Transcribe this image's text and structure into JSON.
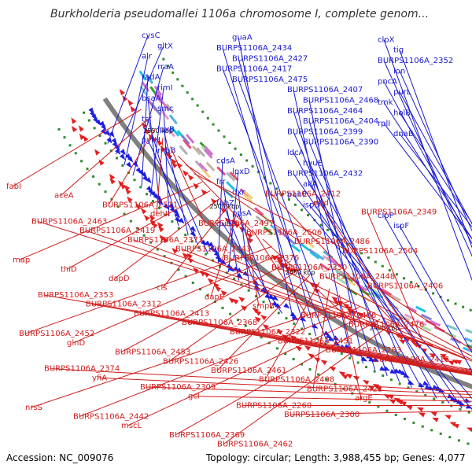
{
  "title": "Burkholderia pseudomallei 1106a chromosome I, complete genom...",
  "footer": {
    "accession": "Accession: NC_009076",
    "summary": "Topology: circular; Length: 3,988,455 bp; Genes: 4,077"
  },
  "colors": {
    "forward": "#1f1fe6",
    "reverse": "#e61f1f",
    "backbone": "#808080",
    "tick_mark": "#2e8b2e",
    "feature_palette": [
      "#c8b4a0",
      "#78c8c8",
      "#e6a0c8",
      "#a0e0a0",
      "#8080d0",
      "#f0d080",
      "#b0b0b0",
      "#50b0e0",
      "#d070d0",
      "#30a030",
      "#e05080",
      "#20c0e0"
    ]
  },
  "kbp_ticks": [
    "2550 kbp",
    "2500 kbp",
    "2450 kbp",
    "2400 kbp",
    "2350 kbp",
    "2300 kbp",
    "2250 kbp"
  ],
  "forward_labels": [
    "cysC",
    "gltX",
    "alr",
    "rraA",
    "radA",
    "rimI",
    "bsaA",
    "smc",
    "tsf",
    "lpxB",
    "pyrH",
    "rnhB",
    "cdsA",
    "lpxD",
    "frr",
    "dxr",
    "fabZ",
    "ppsA",
    "guaB",
    "guaA",
    "BURPS1106A_2434",
    "BURPS1106A_2427",
    "BURPS1106A_2417",
    "BURPS1106A_2475",
    "BURPS1106A_2407",
    "BURPS1106A_2468",
    "BURPS1106A_2464",
    "BURPS1106A_2404",
    "BURPS1106A_2399",
    "BURPS1106A_2390",
    "ldcA",
    "hyuE",
    "BURPS1106A_2432",
    "allA",
    "panE",
    "ispD",
    "clpP",
    "ispF",
    "clpX",
    "tig",
    "BURPS1106A_2352",
    "lon",
    "pncA",
    "purL",
    "tmk",
    "holB",
    "rplI",
    "dnaB"
  ],
  "reverse_labels": [
    "fabI",
    "aceA",
    "BURPS1106A_2511",
    "dehII",
    "BURPS1106A_2497",
    "BURPS1106A_2506",
    "BURPS1106A_2486",
    "BURPS1106A_2504",
    "map",
    "thiD",
    "dapD",
    "cls",
    "dapE",
    "smpB",
    "BURPS1106A_2466",
    "BURPS1106A_2476",
    "BURPS1106A_2452",
    "glnD",
    "BURPS1106A_2453",
    "BURPS1106A_2426",
    "BURPS1106A_2461",
    "BURPS1106A_2408",
    "BURPS1106A_2421",
    "argE",
    "nrsS",
    "BURPS1106A_2442",
    "mscL",
    "BURPS1106A_2369",
    "BURPS1106A_2462",
    "BURPS1106A_2412",
    "mrd",
    "BURPS1106A_2349",
    "BURPS1106A_2463",
    "BURPS1106A_2419",
    "BURPS1106A_2373",
    "BURPS1106A_2443",
    "BURPS1106A_2376",
    "BURPS1106A_2330",
    "BURPS1106A_2448",
    "BURPS1106A_2406",
    "BURPS1106A_2353",
    "BURPS1106A_2312",
    "BURPS1106A_2413",
    "BURPS1106A_2368",
    "BURPS1106A_2322",
    "BURPS1106A_2451",
    "BURPS1106A_2283",
    "BURPS1106A_2416",
    "BURPS1106A_2374",
    "yfiA",
    "BURPS1106A_2309",
    "gcl",
    "BURPS1106A_2260",
    "BURPS1106A_2300"
  ]
}
